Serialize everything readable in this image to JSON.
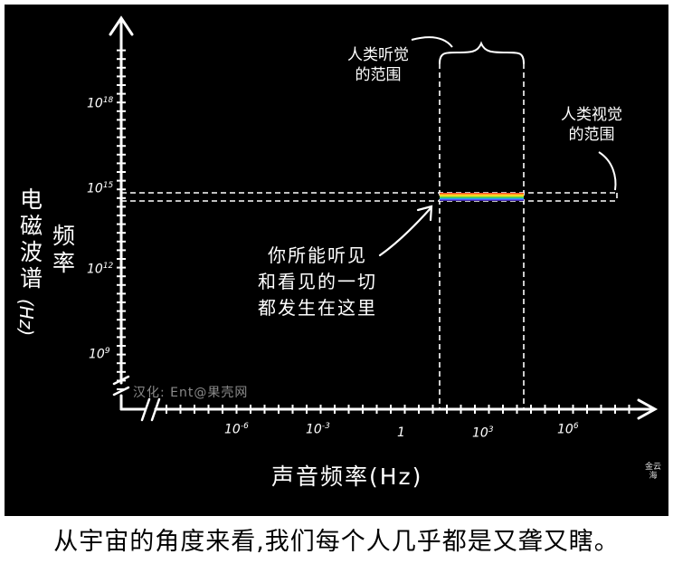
{
  "y_axis": {
    "label_col1": "电磁波谱",
    "label_col2": "频率",
    "label_unit": "(Hz)",
    "ticks": [
      {
        "base": "10",
        "exp": "18"
      },
      {
        "base": "10",
        "exp": "15"
      },
      {
        "base": "10",
        "exp": "12"
      },
      {
        "base": "10",
        "exp": "9"
      }
    ]
  },
  "x_axis": {
    "label": "声音频率(Hz)",
    "ticks": [
      {
        "base": "10",
        "exp": "-6"
      },
      {
        "base": "10",
        "exp": "-3"
      },
      {
        "base": "1",
        "exp": ""
      },
      {
        "base": "10",
        "exp": "3"
      },
      {
        "base": "10",
        "exp": "6"
      }
    ]
  },
  "annotations": {
    "hearing": [
      "人类听觉",
      "的范围"
    ],
    "vision": [
      "人类视觉",
      "的范围"
    ],
    "center": [
      "你所能听见",
      "和看见的一切",
      "都发生在这里"
    ]
  },
  "watermark": "汉化: Ent@果壳网",
  "signature": "金云海",
  "caption": "从宇宙的角度来看,我们每个人几乎都是又聋又瞎。",
  "colors": {
    "background": "#000000",
    "foreground": "#ffffff",
    "spectrum": [
      "#ff2a2a",
      "#ff9a1e",
      "#ffe92a",
      "#3bd23b",
      "#2aa7ff",
      "#5b3bff",
      "#b03bff"
    ]
  }
}
